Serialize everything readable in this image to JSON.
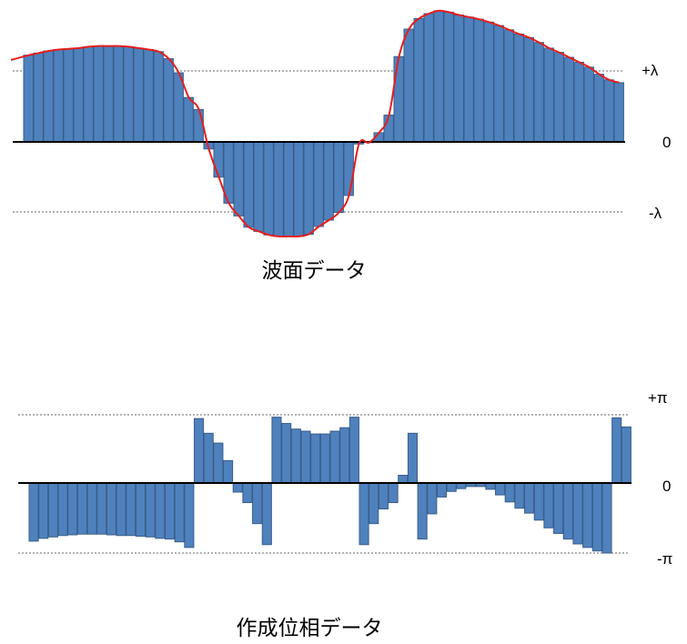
{
  "chart_data": [
    {
      "type": "bar",
      "title": "波面データ",
      "y_ticks": [
        "+λ",
        "0",
        "-λ"
      ],
      "ylim": [
        -1.4,
        1.9
      ],
      "units": "λ",
      "has_fit_curve": true,
      "fit_curve_color": "#e41e1e",
      "bar_color": "#4f81bd",
      "values": [
        1.23,
        1.26,
        1.29,
        1.31,
        1.32,
        1.33,
        1.35,
        1.36,
        1.36,
        1.36,
        1.35,
        1.33,
        1.31,
        1.28,
        1.18,
        0.98,
        0.63,
        0.46,
        -0.1,
        -0.5,
        -0.87,
        -1.05,
        -1.21,
        -1.27,
        -1.32,
        -1.34,
        -1.34,
        -1.34,
        -1.31,
        -1.2,
        -1.11,
        -1.0,
        -0.76,
        -0.03,
        -0.01,
        0.13,
        0.38,
        1.21,
        1.6,
        1.75,
        1.82,
        1.86,
        1.84,
        1.8,
        1.77,
        1.74,
        1.7,
        1.65,
        1.59,
        1.53,
        1.48,
        1.41,
        1.33,
        1.27,
        1.2,
        1.13,
        1.06,
        0.96,
        0.88,
        0.84
      ]
    },
    {
      "type": "bar",
      "title": "作成位相データ",
      "y_ticks": [
        "+π",
        "0",
        "-π"
      ],
      "ylim": [
        -1.1,
        1.0
      ],
      "units": "π",
      "bar_color": "#4f81bd",
      "values": [
        -0.83,
        -0.79,
        -0.77,
        -0.75,
        -0.74,
        -0.73,
        -0.73,
        -0.73,
        -0.74,
        -0.75,
        -0.75,
        -0.76,
        -0.77,
        -0.79,
        -0.8,
        -0.84,
        -0.92,
        0.92,
        0.71,
        0.57,
        0.32,
        -0.13,
        -0.28,
        -0.58,
        -0.88,
        0.94,
        0.85,
        0.77,
        0.74,
        0.7,
        0.7,
        0.74,
        0.79,
        0.94,
        -0.88,
        -0.58,
        -0.37,
        -0.28,
        0.11,
        0.71,
        -0.8,
        -0.44,
        -0.2,
        -0.12,
        -0.08,
        -0.05,
        -0.05,
        -0.09,
        -0.17,
        -0.27,
        -0.36,
        -0.43,
        -0.53,
        -0.64,
        -0.72,
        -0.8,
        -0.87,
        -0.92,
        -0.97,
        -1.0,
        0.93,
        0.8
      ]
    }
  ]
}
